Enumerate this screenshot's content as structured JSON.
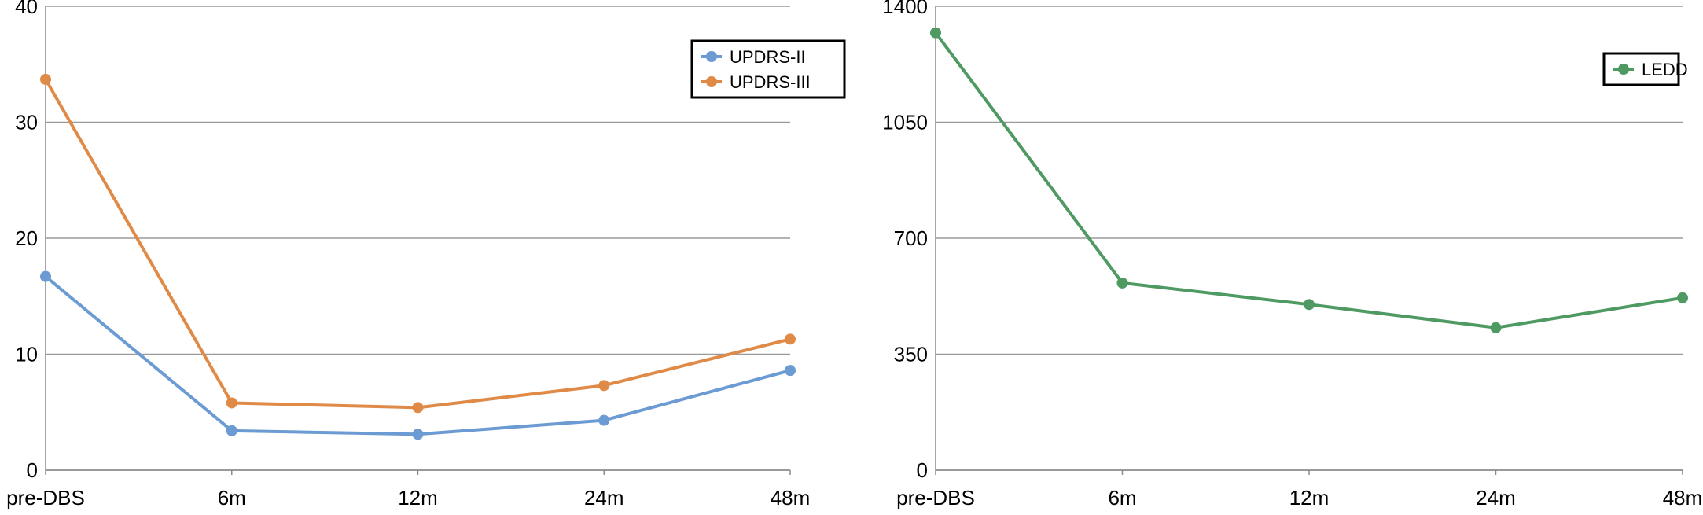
{
  "chart_data": [
    {
      "type": "line",
      "categories": [
        "pre-DBS",
        "6m",
        "12m",
        "24m",
        "48m"
      ],
      "ylim": [
        0,
        40
      ],
      "yticks": [
        0,
        10,
        20,
        30,
        40
      ],
      "grid": true,
      "legend": "top-right",
      "series": [
        {
          "name": "UPDRS-II",
          "color": "#6b9bd2",
          "values": [
            16.7,
            3.4,
            3.1,
            4.3,
            8.6
          ]
        },
        {
          "name": "UPDRS-III",
          "color": "#e08a48",
          "values": [
            33.7,
            5.8,
            5.4,
            7.3,
            11.3
          ]
        }
      ]
    },
    {
      "type": "line",
      "categories": [
        "pre-DBS",
        "6m",
        "12m",
        "24m",
        "48m"
      ],
      "ylim": [
        0,
        1400
      ],
      "yticks": [
        0,
        350,
        700,
        1050,
        1400
      ],
      "grid": true,
      "legend": "top-right",
      "series": [
        {
          "name": "LEDD",
          "color": "#4f9a63",
          "values": [
            1320,
            565,
            500,
            430,
            520
          ]
        }
      ]
    }
  ]
}
